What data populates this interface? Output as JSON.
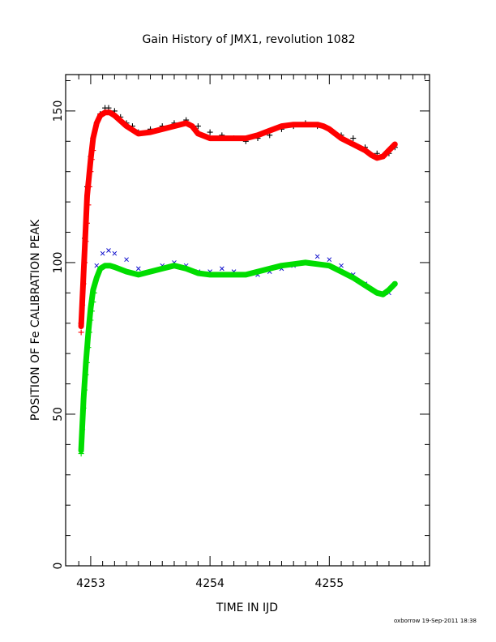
{
  "chart_data": {
    "type": "scatter",
    "title": "Gain History of JMX1, revolution 1082",
    "xlabel": "TIME IN IJD",
    "ylabel": "POSITION OF Fe CALIBRATION PEAK",
    "footer": "oxborrow 19-Sep-2011 18:38",
    "xlim": [
      4252.79,
      4255.84
    ],
    "ylim": [
      0,
      162
    ],
    "x_ticks": [
      4253,
      4254,
      4255
    ],
    "x_tick_labels": [
      "4253",
      "4254",
      "4255"
    ],
    "y_ticks": [
      0,
      50,
      100,
      150
    ],
    "y_tick_labels": [
      "0",
      "50",
      "100",
      "150"
    ],
    "grid": false,
    "legend": "none",
    "series": [
      {
        "marker": "+",
        "color": "#000000",
        "x": [
          4252.92,
          4252.95,
          4252.97,
          4253.0,
          4253.02,
          4253.05,
          4253.08,
          4253.12,
          4253.15,
          4253.2,
          4253.25,
          4253.3,
          4253.35,
          4253.4,
          4253.5,
          4253.6,
          4253.7,
          4253.8,
          4253.9,
          4254.0,
          4254.1,
          4254.2,
          4254.3,
          4254.4,
          4254.5,
          4254.6,
          4254.7,
          4254.8,
          4254.9,
          4255.0,
          4255.1,
          4255.2,
          4255.3,
          4255.4,
          4255.45,
          4255.5,
          4255.55
        ],
        "y": [
          80,
          108,
          125,
          135,
          141,
          146,
          149,
          151,
          151,
          150,
          148,
          146,
          145,
          143,
          144,
          145,
          146,
          147,
          145,
          143,
          142,
          141,
          140,
          141,
          142,
          144,
          145,
          146,
          145,
          144,
          142,
          141,
          138,
          136,
          135,
          136,
          138
        ]
      },
      {
        "marker": "line",
        "color": "#ff0000",
        "width": 7,
        "x": [
          4252.92,
          4252.95,
          4252.97,
          4253.0,
          4253.02,
          4253.05,
          4253.08,
          4253.12,
          4253.16,
          4253.2,
          4253.3,
          4253.4,
          4253.5,
          4253.6,
          4253.7,
          4253.8,
          4253.85,
          4253.9,
          4254.0,
          4254.1,
          4254.2,
          4254.3,
          4254.4,
          4254.5,
          4254.6,
          4254.7,
          4254.8,
          4254.9,
          4254.95,
          4255.0,
          4255.1,
          4255.2,
          4255.3,
          4255.35,
          4255.4,
          4255.45,
          4255.5,
          4255.55
        ],
        "y": [
          79,
          105,
          122,
          134,
          141,
          146,
          148.5,
          149.5,
          149.5,
          148.5,
          145,
          142.5,
          143,
          144,
          145,
          146,
          145,
          142.5,
          141,
          141,
          141,
          141,
          142,
          143.5,
          145,
          145.5,
          145.5,
          145.5,
          145,
          144,
          141,
          139,
          137,
          135.5,
          134.5,
          135,
          137,
          139
        ]
      },
      {
        "marker": "x",
        "color": "#1010cc",
        "x": [
          4253.05,
          4253.1,
          4253.15,
          4253.2,
          4253.3,
          4253.4,
          4253.5,
          4253.6,
          4253.7,
          4253.8,
          4253.9,
          4254.0,
          4254.1,
          4254.2,
          4254.3,
          4254.4,
          4254.5,
          4254.6,
          4254.7,
          4254.8,
          4254.9,
          4255.0,
          4255.1,
          4255.2,
          4255.3,
          4255.4,
          4255.5,
          4255.55
        ],
        "y": [
          99,
          103,
          104,
          103,
          101,
          98,
          97,
          99,
          100,
          99,
          97,
          97,
          98,
          97,
          96,
          96,
          97,
          98,
          99,
          100,
          102,
          101,
          99,
          96,
          93,
          90,
          90,
          93
        ]
      },
      {
        "marker": "line",
        "color": "#00dd00",
        "width": 7,
        "x": [
          4252.92,
          4252.94,
          4252.96,
          4252.98,
          4253.0,
          4253.02,
          4253.05,
          4253.08,
          4253.12,
          4253.16,
          4253.2,
          4253.3,
          4253.4,
          4253.5,
          4253.6,
          4253.7,
          4253.8,
          4253.9,
          4254.0,
          4254.1,
          4254.2,
          4254.3,
          4254.4,
          4254.5,
          4254.6,
          4254.7,
          4254.8,
          4254.9,
          4255.0,
          4255.1,
          4255.2,
          4255.3,
          4255.4,
          4255.45,
          4255.5,
          4255.55
        ],
        "y": [
          38,
          55,
          67,
          77,
          85,
          91,
          95,
          98,
          99,
          99,
          98.5,
          97,
          96,
          97,
          98,
          99,
          98,
          96.5,
          96,
          96,
          96,
          96,
          97,
          98,
          99,
          99.5,
          100,
          99.5,
          99,
          97,
          95,
          92.5,
          90,
          89.5,
          91,
          93
        ]
      },
      {
        "marker": "+",
        "color": "#00dd00",
        "x": [
          4252.92,
          4252.93,
          4252.94,
          4252.95,
          4252.96,
          4252.97,
          4252.98,
          4252.99,
          4253.0,
          4253.01,
          4253.02,
          4253.03
        ],
        "y": [
          37,
          45,
          52,
          58,
          63,
          67,
          72,
          77,
          81,
          84,
          87,
          90
        ]
      },
      {
        "marker": "+",
        "color": "#ff0000",
        "x": [
          4252.92,
          4252.93,
          4252.94,
          4252.95,
          4252.96,
          4252.97,
          4252.98,
          4252.99,
          4253.0,
          4253.01,
          4253.02
        ],
        "y": [
          77,
          86,
          93,
          100,
          107,
          113,
          119,
          125,
          130,
          134,
          137
        ]
      }
    ]
  }
}
